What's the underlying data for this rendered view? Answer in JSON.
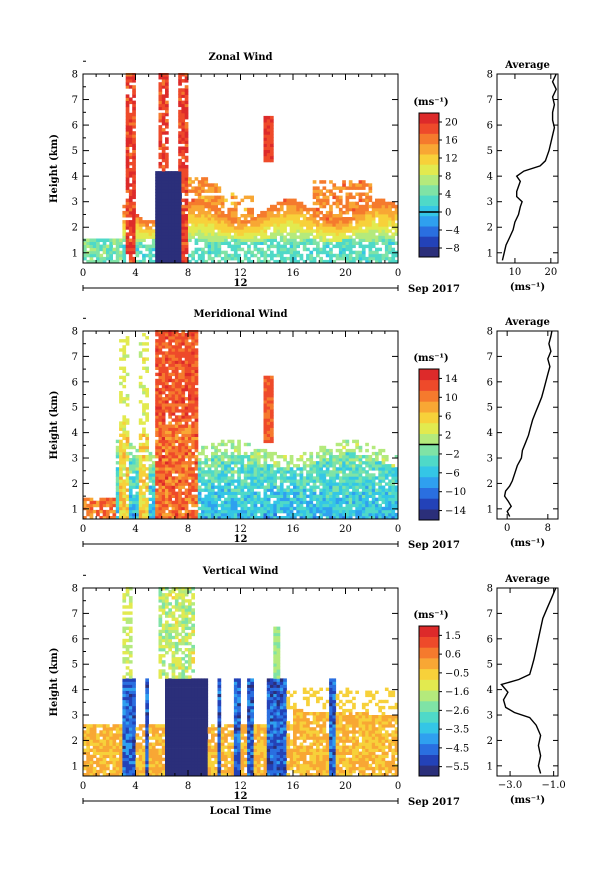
{
  "date_label": "Sep 2017",
  "day_label": "12",
  "xlabel_bottom": "Local Time",
  "colors": {
    "colormap": [
      "#2b2f7a",
      "#2342b8",
      "#2a6fe0",
      "#2fa0ef",
      "#34c6e6",
      "#4fd9c8",
      "#7fe3a6",
      "#b4ea7c",
      "#e2ea4f",
      "#f7d13a",
      "#f8a734",
      "#f57a2d",
      "#ee4a2a",
      "#dd2a2a"
    ]
  },
  "chart_data": [
    {
      "type": "heatmap",
      "title": "Zonal Wind",
      "xlabel": "",
      "ylabel": "Height (km)",
      "xlim": [
        0,
        24
      ],
      "ylim": [
        0.6,
        8
      ],
      "xticks": [
        "0",
        "4",
        "8",
        "12",
        "16",
        "20",
        "0"
      ],
      "yticks": [
        "1",
        "2",
        "3",
        "4",
        "5",
        "6",
        "7",
        "8"
      ],
      "colorbar_unit": "(ms⁻¹)",
      "colorbar_ticks": [
        "20",
        "16",
        "12",
        "8",
        "4",
        "0",
        "−4",
        "−8"
      ],
      "colorbar_range": [
        -10,
        22
      ],
      "contour_value": 0,
      "profile": {
        "title": "Average",
        "xlabel": "(ms⁻¹)",
        "xticks": [
          "10",
          "20"
        ],
        "xlim": [
          5,
          22
        ],
        "heights": [
          0.7,
          1.0,
          1.3,
          1.6,
          1.9,
          2.2,
          2.5,
          2.8,
          3.0,
          3.2,
          3.4,
          3.6,
          3.8,
          4.0,
          4.2,
          4.4,
          4.6,
          4.8,
          5.0,
          5.3,
          5.6,
          5.9,
          6.2,
          6.5,
          6.8,
          7.1,
          7.4,
          7.7,
          8.0
        ],
        "values": [
          6.5,
          7.0,
          7.5,
          8.5,
          9.5,
          10.0,
          11.0,
          11.5,
          12.0,
          10.5,
          10.5,
          11.0,
          11.5,
          10.5,
          12.5,
          17.0,
          18.5,
          19.0,
          19.5,
          20.0,
          20.5,
          21.0,
          20.5,
          20.5,
          21.0,
          20.5,
          21.5,
          20.5,
          21.5
        ]
      }
    },
    {
      "type": "heatmap",
      "title": "Meridional Wind",
      "xlabel": "",
      "ylabel": "Height (km)",
      "xlim": [
        0,
        24
      ],
      "ylim": [
        0.6,
        8
      ],
      "xticks": [
        "0",
        "4",
        "8",
        "12",
        "16",
        "20",
        "0"
      ],
      "yticks": [
        "1",
        "2",
        "3",
        "4",
        "5",
        "6",
        "7",
        "8"
      ],
      "colorbar_unit": "(ms⁻¹)",
      "colorbar_ticks": [
        "14",
        "10",
        "6",
        "2",
        "−2",
        "−6",
        "−10",
        "−14"
      ],
      "colorbar_range": [
        -16,
        16
      ],
      "contour_value": 0,
      "profile": {
        "title": "Average",
        "xlabel": "(ms⁻¹)",
        "xticks": [
          "0",
          "8"
        ],
        "xlim": [
          -2,
          10
        ],
        "heights": [
          0.7,
          0.9,
          1.1,
          1.3,
          1.5,
          1.7,
          1.9,
          2.1,
          2.4,
          2.7,
          3.0,
          3.3,
          3.6,
          3.9,
          4.2,
          4.5,
          4.8,
          5.1,
          5.4,
          5.7,
          6.0,
          6.3,
          6.6,
          6.9,
          7.2,
          7.5,
          7.8,
          8.0
        ],
        "values": [
          0.5,
          0.0,
          0.8,
          0.2,
          -0.5,
          -0.3,
          0.5,
          1.0,
          1.5,
          2.0,
          2.8,
          3.0,
          3.6,
          4.2,
          4.6,
          5.0,
          5.6,
          6.2,
          6.8,
          7.2,
          7.6,
          8.0,
          8.4,
          8.0,
          8.6,
          8.2,
          8.6,
          8.8
        ]
      }
    },
    {
      "type": "heatmap",
      "title": "Vertical Wind",
      "xlabel": "Local Time",
      "ylabel": "Height (km)",
      "xlim": [
        0,
        24
      ],
      "ylim": [
        0.6,
        8
      ],
      "xticks": [
        "0",
        "4",
        "8",
        "12",
        "16",
        "20",
        "0"
      ],
      "yticks": [
        "1",
        "2",
        "3",
        "4",
        "5",
        "6",
        "7",
        "8"
      ],
      "colorbar_unit": "(ms⁻¹)",
      "colorbar_ticks": [
        "1.5",
        "0.6",
        "−0.5",
        "−1.6",
        "−2.6",
        "−3.5",
        "−4.5",
        "−5.5"
      ],
      "colorbar_range": [
        -6,
        2
      ],
      "profile": {
        "title": "Average",
        "xlabel": "(ms⁻¹)",
        "xticks": [
          "−3.0",
          "−1.0"
        ],
        "xlim": [
          -3.6,
          -0.8
        ],
        "heights": [
          0.7,
          1.0,
          1.4,
          1.8,
          2.2,
          2.6,
          2.9,
          3.1,
          3.3,
          3.6,
          3.9,
          4.2,
          4.4,
          4.6,
          4.9,
          5.2,
          5.6,
          6.0,
          6.4,
          6.8,
          7.2,
          7.6,
          8.0
        ],
        "values": [
          -1.6,
          -1.7,
          -1.6,
          -1.7,
          -1.6,
          -1.8,
          -2.1,
          -2.8,
          -3.2,
          -3.3,
          -3.1,
          -3.4,
          -2.6,
          -2.1,
          -2.0,
          -1.9,
          -1.8,
          -1.7,
          -1.6,
          -1.5,
          -1.3,
          -1.1,
          -0.9
        ]
      }
    }
  ]
}
